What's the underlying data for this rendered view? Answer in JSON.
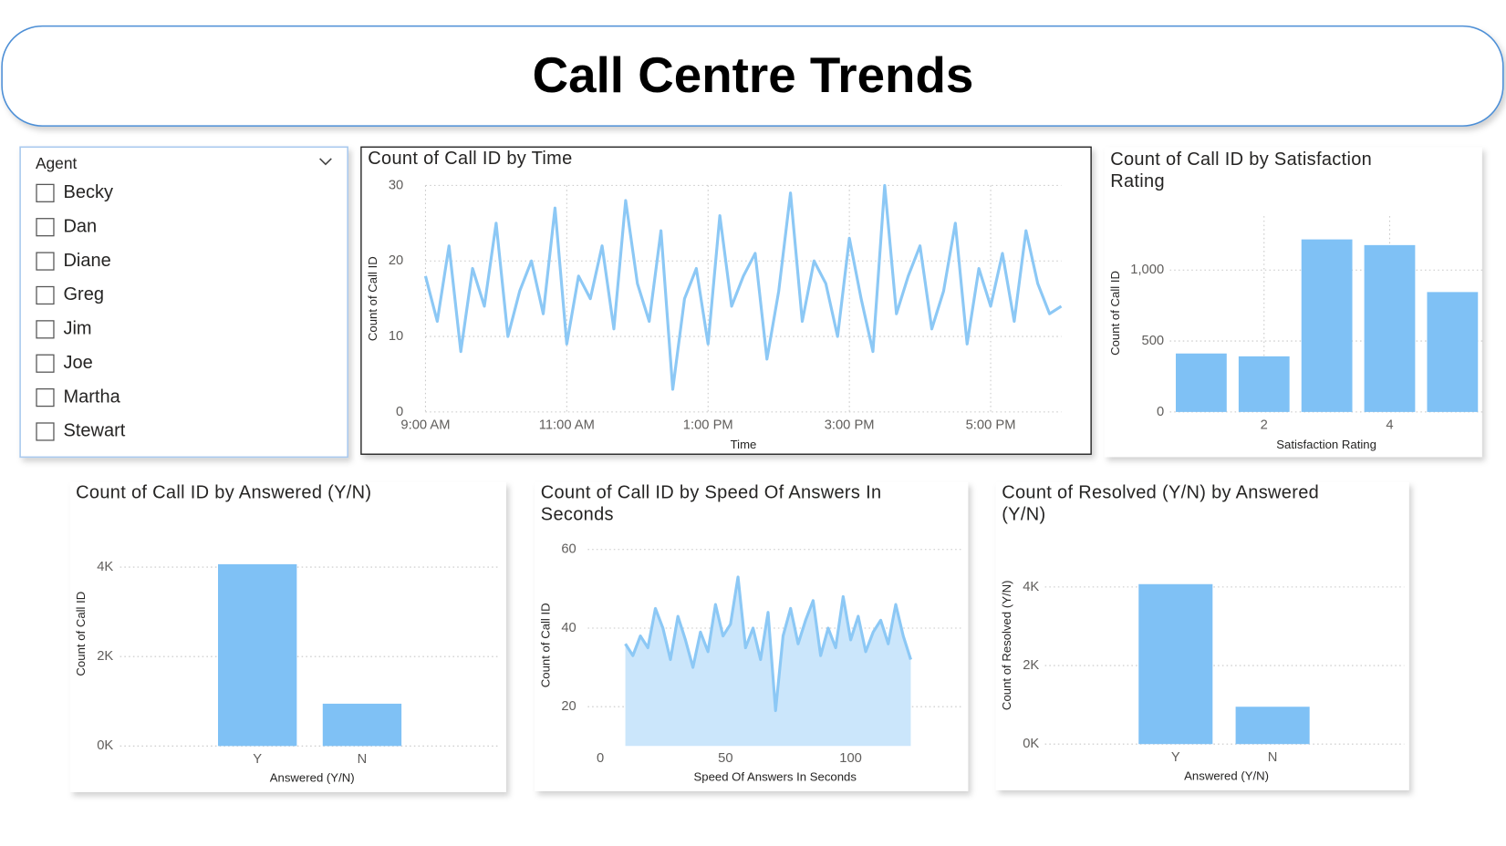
{
  "header": {
    "title": "Call Centre Trends"
  },
  "slicer": {
    "title": "Agent",
    "items": [
      "Becky",
      "Dan",
      "Diane",
      "Greg",
      "Jim",
      "Joe",
      "Martha",
      "Stewart"
    ]
  },
  "chart_data": [
    {
      "type": "line",
      "title": "Count of Call ID by Time",
      "x_label": "Time",
      "y_label": "Count of Call ID",
      "x": [
        540,
        550,
        560,
        570,
        580,
        590,
        600,
        610,
        620,
        630,
        640,
        650,
        660,
        670,
        680,
        690,
        700,
        710,
        720,
        730,
        740,
        750,
        760,
        770,
        780,
        790,
        800,
        810,
        820,
        830,
        840,
        850,
        860,
        870,
        880,
        890,
        900,
        910,
        920,
        930,
        940,
        950,
        960,
        970,
        980,
        990,
        1000,
        1010,
        1020,
        1030,
        1040,
        1050,
        1060,
        1070,
        1080
      ],
      "values": [
        18,
        12,
        22,
        8,
        19,
        14,
        25,
        10,
        16,
        20,
        13,
        27,
        9,
        18,
        15,
        22,
        11,
        28,
        17,
        12,
        24,
        3,
        15,
        19,
        9,
        26,
        14,
        18,
        21,
        7,
        16,
        29,
        12,
        20,
        17,
        10,
        23,
        15,
        8,
        30,
        13,
        18,
        22,
        11,
        16,
        25,
        9,
        19,
        14,
        21,
        12,
        24,
        17,
        13,
        14
      ],
      "xlim": [
        540,
        1080
      ],
      "xticks": [
        {
          "value": 540,
          "label": "9:00 AM"
        },
        {
          "value": 660,
          "label": "11:00 AM"
        },
        {
          "value": 780,
          "label": "1:00 PM"
        },
        {
          "value": 900,
          "label": "3:00 PM"
        },
        {
          "value": 1020,
          "label": "5:00 PM"
        }
      ],
      "ylim": [
        0,
        30
      ],
      "yticks": [
        0,
        10,
        20,
        30
      ],
      "color": "#8cc8f5",
      "grid": true,
      "xgrid": true
    },
    {
      "type": "bar",
      "title": "Count of Call ID by Satisfaction Rating",
      "x_label": "Satisfaction Rating",
      "y_label": "Count of Call ID",
      "x": [
        1,
        2,
        3,
        4,
        5
      ],
      "values": [
        412,
        392,
        1216,
        1176,
        845
      ],
      "xlim": [
        0.5,
        5.5
      ],
      "xticks": [
        2,
        4
      ],
      "ylim": [
        0,
        1380
      ],
      "yticks": [
        0,
        500,
        {
          "value": 1000,
          "label": "1,000"
        }
      ],
      "color": "#7fc1f5",
      "grid": true,
      "xgrid": true
    },
    {
      "type": "bar",
      "title": "Count of Call ID by Answered (Y/N)",
      "x_label": "Answered (Y/N)",
      "y_label": "Count of Call ID",
      "categories": [
        "Y",
        "N"
      ],
      "values": [
        4065,
        946
      ],
      "ylim": [
        0,
        4400
      ],
      "yticks": [
        {
          "value": 0,
          "label": "0K"
        },
        {
          "value": 2000,
          "label": "2K"
        },
        {
          "value": 4000,
          "label": "4K"
        }
      ],
      "color": "#7fc1f5",
      "grid": true
    },
    {
      "type": "area",
      "title": "Count of Call ID by Speed Of Answers In Seconds",
      "x_label": "Speed Of Answers In Seconds",
      "y_label": "Count of Call ID",
      "x": [
        10,
        13,
        16,
        19,
        22,
        25,
        28,
        31,
        34,
        37,
        40,
        43,
        46,
        49,
        52,
        55,
        58,
        61,
        64,
        67,
        70,
        73,
        76,
        79,
        82,
        85,
        88,
        91,
        94,
        97,
        100,
        103,
        106,
        109,
        112,
        115,
        118,
        121,
        124
      ],
      "values": [
        36,
        33,
        38,
        35,
        45,
        40,
        32,
        43,
        37,
        30,
        39,
        34,
        46,
        38,
        41,
        53,
        35,
        40,
        32,
        44,
        19,
        38,
        45,
        36,
        42,
        47,
        33,
        40,
        35,
        48,
        37,
        43,
        34,
        39,
        42,
        36,
        46,
        38,
        32
      ],
      "xlim": [
        -5,
        145
      ],
      "xticks": [
        0,
        50,
        100
      ],
      "ylim": [
        10,
        63
      ],
      "yticks": [
        20,
        40,
        60
      ],
      "color": "#8cc8f5",
      "fill": "#cbe6fb",
      "grid": true
    },
    {
      "type": "bar",
      "title": "Count of Resolved (Y/N) by Answered (Y/N)",
      "x_label": "Answered (Y/N)",
      "y_label": "Count of Resolved (Y/N)",
      "categories": [
        "Y",
        "N"
      ],
      "values": [
        4073,
        951
      ],
      "ylim": [
        0,
        4400
      ],
      "yticks": [
        {
          "value": 0,
          "label": "0K"
        },
        {
          "value": 2000,
          "label": "2K"
        },
        {
          "value": 4000,
          "label": "4K"
        }
      ],
      "color": "#7fc1f5",
      "grid": true
    }
  ]
}
